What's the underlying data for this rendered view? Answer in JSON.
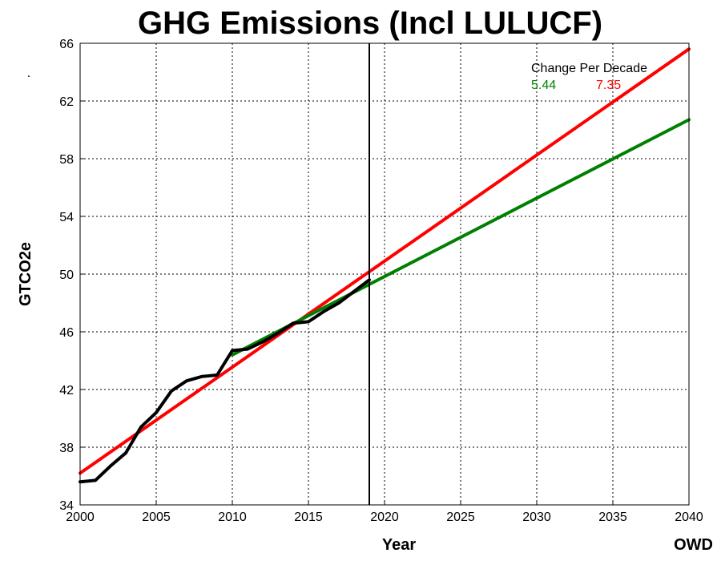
{
  "chart_data": {
    "type": "line",
    "title": "GHG Emissions (Incl LULUCF)",
    "xlabel": "Year",
    "ylabel": "GTCO2e",
    "source": "OWD",
    "corner_mark": ".",
    "xlim": [
      2000,
      2040
    ],
    "ylim": [
      34,
      66
    ],
    "x_ticks": [
      2000,
      2005,
      2010,
      2015,
      2020,
      2025,
      2030,
      2035,
      2040
    ],
    "y_ticks": [
      34,
      38,
      42,
      46,
      50,
      54,
      58,
      62,
      66
    ],
    "grid": true,
    "vertical_line_x": 2019,
    "legend": {
      "title": "Change Per Decade",
      "entries": [
        {
          "label": "5.44",
          "color": "#008000"
        },
        {
          "label": "7.35",
          "color": "#ff0000"
        }
      ]
    },
    "series": [
      {
        "color": "#000000",
        "x": [
          2000,
          2001,
          2002,
          2003,
          2004,
          2005,
          2006,
          2007,
          2008,
          2009,
          2010,
          2011,
          2012,
          2013,
          2014,
          2015,
          2016,
          2017,
          2018,
          2019
        ],
        "y": [
          35.6,
          35.7,
          36.7,
          37.6,
          39.4,
          40.4,
          41.9,
          42.6,
          42.9,
          43.0,
          44.7,
          44.8,
          45.3,
          45.9,
          46.6,
          46.7,
          47.4,
          48.0,
          48.8,
          49.6
        ]
      },
      {
        "color": "#008000",
        "x": [
          2010,
          2040
        ],
        "y": [
          44.4,
          60.7
        ]
      },
      {
        "color": "#ff0000",
        "x": [
          2000,
          2040
        ],
        "y": [
          36.2,
          65.6
        ]
      }
    ]
  }
}
